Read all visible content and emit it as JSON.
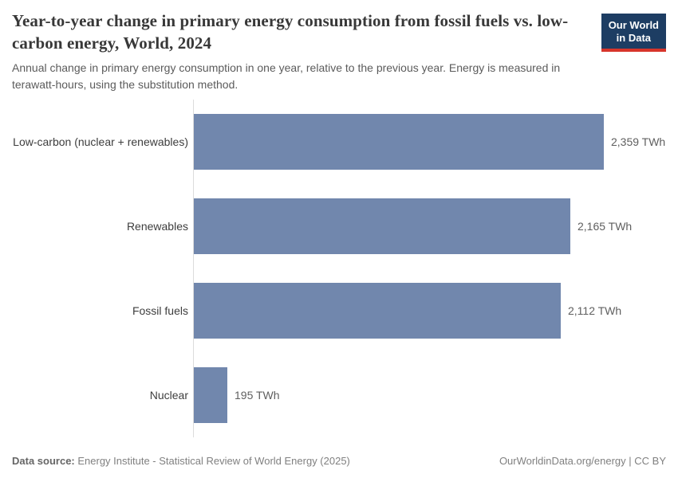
{
  "header": {
    "title": "Year-to-year change in primary energy consumption from fossil fuels vs. low-carbon energy, World, 2024",
    "subtitle": "Annual change in primary energy consumption in one year, relative to the previous year. Energy is measured in terawatt-hours, using the substitution method.",
    "logo_line1": "Our World",
    "logo_line2": "in Data"
  },
  "chart_data": {
    "type": "bar",
    "orientation": "horizontal",
    "title": "Year-to-year change in primary energy consumption from fossil fuels vs. low-carbon energy, World, 2024",
    "categories": [
      "Low-carbon (nuclear + renewables)",
      "Renewables",
      "Fossil fuels",
      "Nuclear"
    ],
    "values": [
      2359,
      2165,
      2112,
      195
    ],
    "value_labels": [
      "2,359 TWh",
      "2,165 TWh",
      "2,112 TWh",
      "195 TWh"
    ],
    "unit": "TWh",
    "xlim": [
      0,
      2359
    ],
    "grid": false,
    "legend": "none"
  },
  "footer": {
    "datasource_label": "Data source:",
    "datasource_text": " Energy Institute - Statistical Review of World Energy (2025)",
    "credit": "OurWorldinData.org/energy | CC BY"
  },
  "colors": {
    "bar": "#7187ad",
    "logo_background": "#1d3d63",
    "logo_underline": "#d7352b",
    "title_text": "#383838",
    "subtitle_text": "#5b5b5b"
  }
}
